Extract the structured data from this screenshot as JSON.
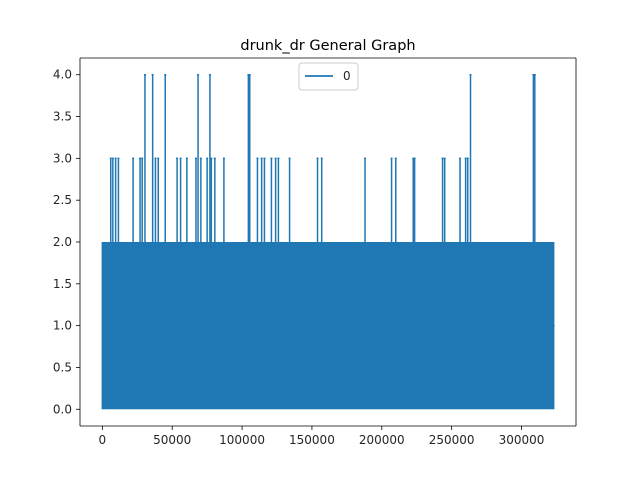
{
  "chart_data": {
    "type": "line",
    "title": "drunk_dr General Graph",
    "xlabel": "",
    "ylabel": "",
    "xlim": [
      -16000,
      339000
    ],
    "ylim": [
      -0.2,
      4.2
    ],
    "x_ticks": [
      0,
      50000,
      100000,
      150000,
      200000,
      250000,
      300000
    ],
    "y_ticks": [
      0.0,
      0.5,
      1.0,
      1.5,
      2.0,
      2.5,
      3.0,
      3.5,
      4.0
    ],
    "x_tick_labels": [
      "0",
      "50000",
      "100000",
      "150000",
      "200000",
      "250000",
      "300000"
    ],
    "y_tick_labels": [
      "0.0",
      "0.5",
      "1.0",
      "1.5",
      "2.0",
      "2.5",
      "3.0",
      "3.5",
      "4.0"
    ],
    "legend": {
      "position": "top-center",
      "entries": [
        "0"
      ]
    },
    "grid": false,
    "series": [
      {
        "name": "0",
        "color": "#1f77b4",
        "x_range": [
          0,
          323000
        ],
        "baseline_band": {
          "min": 0,
          "max": 2
        },
        "spikes": [
          {
            "x": 6000,
            "y": 3
          },
          {
            "x": 7500,
            "y": 3
          },
          {
            "x": 9500,
            "y": 3
          },
          {
            "x": 11500,
            "y": 3
          },
          {
            "x": 22000,
            "y": 3
          },
          {
            "x": 27000,
            "y": 3
          },
          {
            "x": 28500,
            "y": 3
          },
          {
            "x": 30500,
            "y": 4
          },
          {
            "x": 36000,
            "y": 4
          },
          {
            "x": 38000,
            "y": 3
          },
          {
            "x": 40000,
            "y": 3
          },
          {
            "x": 45000,
            "y": 4
          },
          {
            "x": 53500,
            "y": 3
          },
          {
            "x": 56000,
            "y": 3
          },
          {
            "x": 60500,
            "y": 3
          },
          {
            "x": 67000,
            "y": 3
          },
          {
            "x": 68500,
            "y": 4
          },
          {
            "x": 70500,
            "y": 3
          },
          {
            "x": 75000,
            "y": 3
          },
          {
            "x": 77000,
            "y": 4
          },
          {
            "x": 78000,
            "y": 3
          },
          {
            "x": 80500,
            "y": 3
          },
          {
            "x": 87000,
            "y": 3
          },
          {
            "x": 104500,
            "y": 4
          },
          {
            "x": 105500,
            "y": 4
          },
          {
            "x": 111000,
            "y": 3
          },
          {
            "x": 114000,
            "y": 3
          },
          {
            "x": 116000,
            "y": 3
          },
          {
            "x": 121000,
            "y": 3
          },
          {
            "x": 124000,
            "y": 3
          },
          {
            "x": 126000,
            "y": 3
          },
          {
            "x": 134000,
            "y": 3
          },
          {
            "x": 154000,
            "y": 3
          },
          {
            "x": 157000,
            "y": 3
          },
          {
            "x": 188000,
            "y": 3
          },
          {
            "x": 207000,
            "y": 3
          },
          {
            "x": 210000,
            "y": 3
          },
          {
            "x": 222500,
            "y": 3
          },
          {
            "x": 223500,
            "y": 3
          },
          {
            "x": 243500,
            "y": 3
          },
          {
            "x": 245000,
            "y": 3
          },
          {
            "x": 256000,
            "y": 3
          },
          {
            "x": 260000,
            "y": 3
          },
          {
            "x": 261500,
            "y": 3
          },
          {
            "x": 263500,
            "y": 4
          },
          {
            "x": 308500,
            "y": 4
          },
          {
            "x": 309500,
            "y": 4
          }
        ]
      }
    ]
  }
}
